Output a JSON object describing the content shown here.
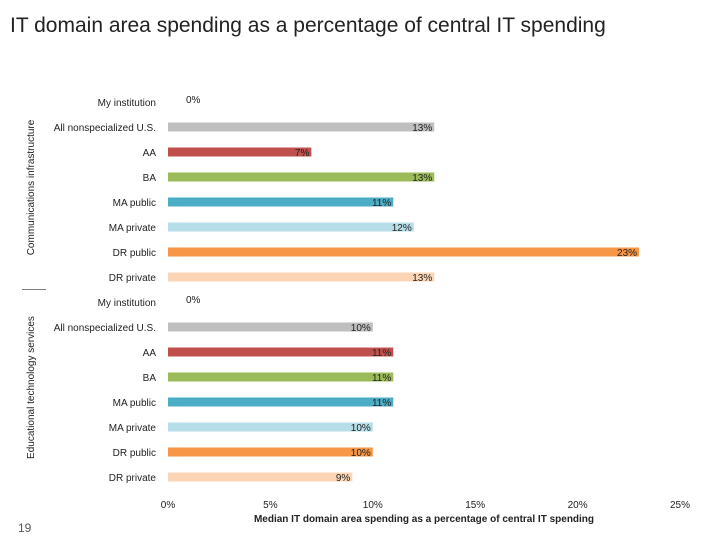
{
  "slide": {
    "title": "IT domain area spending as a percentage of central IT spending",
    "page_number": "19"
  },
  "chart_data": {
    "type": "bar",
    "orientation": "horizontal",
    "xlabel": "Median IT domain area spending as a percentage of central IT spending",
    "xlim": [
      0,
      25
    ],
    "x_ticks": [
      0,
      5,
      10,
      15,
      20,
      25
    ],
    "x_tick_labels": [
      "0%",
      "5%",
      "10%",
      "15%",
      "20%",
      "25%"
    ],
    "grid": false,
    "legend": "none",
    "category_colors": {
      "My institution": "#7f7f7f",
      "All nonspecialized U.S.": "#bfbfbf",
      "AA": "#c0504d",
      "BA": "#9bbb59",
      "MA public": "#4bacc6",
      "MA private": "#b7dee8",
      "DR public": "#f79646",
      "DR private": "#fbd5b5"
    },
    "groups": [
      {
        "name": "Communications infrastructure",
        "categories": [
          "My institution",
          "All nonspecialized U.S.",
          "AA",
          "BA",
          "MA public",
          "MA private",
          "DR public",
          "DR private"
        ],
        "values": [
          0,
          13,
          7,
          13,
          11,
          12,
          23,
          13
        ],
        "value_labels": [
          "0%",
          "13%",
          "7%",
          "13%",
          "11%",
          "12%",
          "23%",
          "13%"
        ]
      },
      {
        "name": "Educational technology services",
        "categories": [
          "My institution",
          "All nonspecialized U.S.",
          "AA",
          "BA",
          "MA public",
          "MA private",
          "DR public",
          "DR private"
        ],
        "values": [
          0,
          10,
          11,
          11,
          11,
          10,
          10,
          9
        ],
        "value_labels": [
          "0%",
          "10%",
          "11%",
          "11%",
          "11%",
          "10%",
          "10%",
          "9%"
        ]
      }
    ]
  }
}
